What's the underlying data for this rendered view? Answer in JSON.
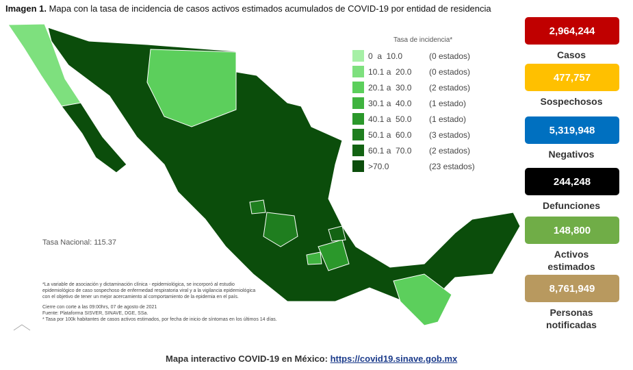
{
  "header": {
    "label": "Imagen 1.",
    "title": "Mapa con la tasa de incidencia de casos activos estimados acumulados de COVID-19 por entidad de residencia"
  },
  "legend": {
    "title": "Tasa de incidencia*",
    "items": [
      {
        "range": "0  a  10.0",
        "count": "(0 estados)",
        "color": "#a6f0a6"
      },
      {
        "range": "10.1 a  20.0",
        "count": "(0 estados)",
        "color": "#7ee07e"
      },
      {
        "range": "20.1 a  30.0",
        "count": "(2 estados)",
        "color": "#5ccf5c"
      },
      {
        "range": "30.1 a  40.0",
        "count": "(1 estado)",
        "color": "#3fb33f"
      },
      {
        "range": "40.1 a  50.0",
        "count": "(1 estado)",
        "color": "#2b982b"
      },
      {
        "range": "50.1 a  60.0",
        "count": "(3 estados)",
        "color": "#1f7e1f"
      },
      {
        "range": "60.1 a  70.0",
        "count": "(2 estados)",
        "color": "#136313"
      },
      {
        "range": ">70.0",
        "count": "(23 estados)",
        "color": "#0b4d0b"
      }
    ]
  },
  "national_rate": "Tasa Nacional: 115.37",
  "notes": [
    "*La variable de asociación y dictaminación clínica - epidemiológica, se incorporó al estudio",
    "epidemiológico de caso sospechoso de enfermedad respiratoria viral y a la vigilancia epidemiológica",
    "con el objetivo de tener un mejor acercamiento al comportamiento de la epidemia en el país.",
    "Cierre con corte a las 09:00hrs, 07 de agosto de 2021",
    "Fuente: Plataforma SISVER, SINAVE, DGE, SSa.",
    "* Tasa por 100k habitantes de casos activos estimados, por fecha de inicio de síntomas en los últimos 14 días."
  ],
  "stats": [
    {
      "value": "2,964,244",
      "label": [
        "Casos"
      ],
      "color": "#c00000"
    },
    {
      "value": "477,757",
      "label": [
        "Sospechosos"
      ],
      "color": "#ffc000"
    },
    {
      "value": "5,319,948",
      "label": [
        "Negativos"
      ],
      "color": "#0070c0"
    },
    {
      "value": "244,248",
      "label": [
        "Defunciones"
      ],
      "color": "#000000"
    },
    {
      "value": "148,800",
      "label": [
        "Activos",
        "estimados"
      ],
      "color": "#70ad47"
    },
    {
      "value": "8,761,949",
      "label": [
        "Personas",
        "notificadas"
      ],
      "color": "#b8995f"
    }
  ],
  "footer": {
    "text": "Mapa interactivo COVID-19 en México:",
    "link": "https://covid19.sinave.gob.mx"
  }
}
